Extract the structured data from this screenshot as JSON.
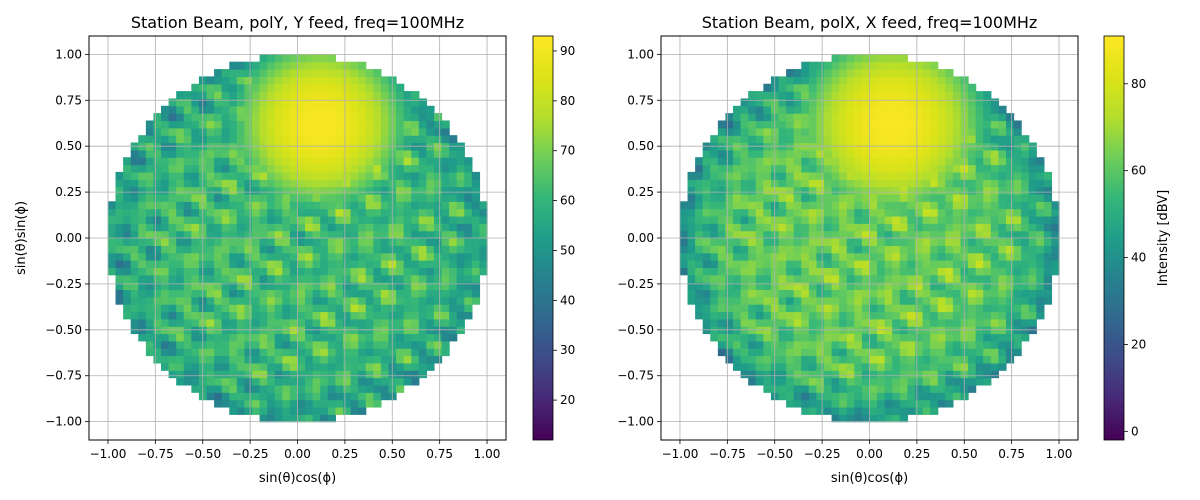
{
  "chart_data": [
    {
      "type": "heatmap",
      "title": "Station Beam, polY, Y feed, freq=100MHz",
      "xlabel": "sin(θ)cos(ϕ)",
      "ylabel": "sin(θ)sin(ϕ)",
      "xlim": [
        -1.1,
        1.1
      ],
      "ylim": [
        -1.1,
        1.1
      ],
      "xticks": [
        -1.0,
        -0.75,
        -0.5,
        -0.25,
        0.0,
        0.25,
        0.5,
        0.75,
        1.0
      ],
      "yticks": [
        -1.0,
        -0.75,
        -0.5,
        -0.25,
        0.0,
        0.25,
        0.5,
        0.75,
        1.0
      ],
      "xtick_labels": [
        "−1.00",
        "−0.75",
        "−0.50",
        "−0.25",
        "0.00",
        "0.25",
        "0.50",
        "0.75",
        "1.00"
      ],
      "ytick_labels": [
        "−1.00",
        "−0.75",
        "−0.50",
        "−0.25",
        "0.00",
        "0.25",
        "0.50",
        "0.75",
        "1.00"
      ],
      "grid": true,
      "colormap": "viridis",
      "colorbar": {
        "min": 12,
        "max": 93,
        "ticks": [
          20,
          30,
          40,
          50,
          60,
          70,
          80,
          90
        ],
        "tick_labels": [
          "20",
          "30",
          "40",
          "50",
          "60",
          "70",
          "80",
          "90"
        ],
        "label": ""
      },
      "beam_peak": {
        "x": 0.12,
        "y": 0.62,
        "value": 92
      },
      "background_level": 62,
      "edge_level": 52
    },
    {
      "type": "heatmap",
      "title": "Station Beam, polX, X feed, freq=100MHz",
      "xlabel": "sin(θ)cos(ϕ)",
      "ylabel": "",
      "xlim": [
        -1.1,
        1.1
      ],
      "ylim": [
        -1.1,
        1.1
      ],
      "xticks": [
        -1.0,
        -0.75,
        -0.5,
        -0.25,
        0.0,
        0.25,
        0.5,
        0.75,
        1.0
      ],
      "yticks": [
        -1.0,
        -0.75,
        -0.5,
        -0.25,
        0.0,
        0.25,
        0.5,
        0.75,
        1.0
      ],
      "xtick_labels": [
        "−1.00",
        "−0.75",
        "−0.50",
        "−0.25",
        "0.00",
        "0.25",
        "0.50",
        "0.75",
        "1.00"
      ],
      "ytick_labels": [
        "−1.00",
        "−0.75",
        "−0.50",
        "−0.25",
        "0.00",
        "0.25",
        "0.50",
        "0.75",
        "1.00"
      ],
      "grid": true,
      "colormap": "viridis",
      "colorbar": {
        "min": -2,
        "max": 91,
        "ticks": [
          0,
          20,
          40,
          60,
          80
        ],
        "tick_labels": [
          "0",
          "20",
          "40",
          "60",
          "80"
        ],
        "label": "Intensity [dBV]"
      },
      "beam_peak": {
        "x": 0.12,
        "y": 0.62,
        "value": 90
      },
      "background_level": 62,
      "edge_level": 40
    }
  ]
}
